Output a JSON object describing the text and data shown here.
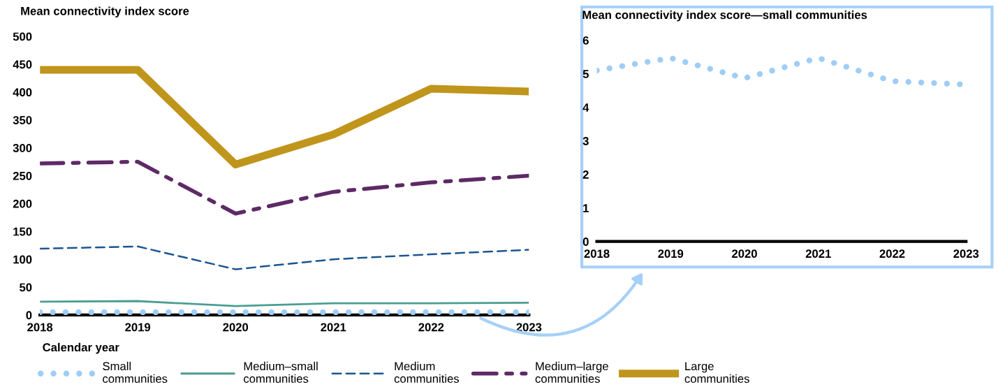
{
  "chart_data": [
    {
      "type": "line",
      "title": "Mean connectivity index score",
      "xlabel": "Calendar year",
      "categories": [
        "2018",
        "2019",
        "2020",
        "2021",
        "2022",
        "2023"
      ],
      "ylim": [
        0,
        500
      ],
      "yticks": [
        0,
        50,
        100,
        150,
        200,
        250,
        300,
        350,
        400,
        450,
        500
      ],
      "grid": false,
      "legend": "bottom",
      "series": [
        {
          "name": "Small communities",
          "color": "#9fcdf5",
          "line_style": "dotted",
          "values": [
            5,
            5,
            5,
            5,
            5,
            5
          ]
        },
        {
          "name": "Medium–small communities",
          "color": "#4a9e91",
          "line_style": "solid",
          "values": [
            24,
            25,
            16,
            21,
            21,
            22
          ]
        },
        {
          "name": "Medium communities",
          "color": "#1b5592",
          "line_style": "dashed",
          "values": [
            119,
            123,
            82,
            100,
            109,
            117
          ]
        },
        {
          "name": "Medium–large communities",
          "color": "#5e2a66",
          "line_style": "dashdot",
          "values": [
            272,
            275,
            182,
            221,
            238,
            250
          ]
        },
        {
          "name": "Large communities",
          "color": "#c0951c",
          "line_style": "solid",
          "values": [
            440,
            440,
            270,
            324,
            406,
            401
          ]
        }
      ]
    },
    {
      "type": "line",
      "title": "Mean connectivity index score—small communities",
      "categories": [
        "2018",
        "2019",
        "2020",
        "2021",
        "2022",
        "2023"
      ],
      "ylim": [
        0,
        6
      ],
      "yticks": [
        0,
        1,
        2,
        3,
        4,
        5,
        6
      ],
      "grid": false,
      "series": [
        {
          "color": "#9fcdf5",
          "line_style": "dotted",
          "values": [
            5.1,
            5.47,
            4.87,
            5.47,
            4.78,
            4.68
          ]
        }
      ]
    }
  ]
}
